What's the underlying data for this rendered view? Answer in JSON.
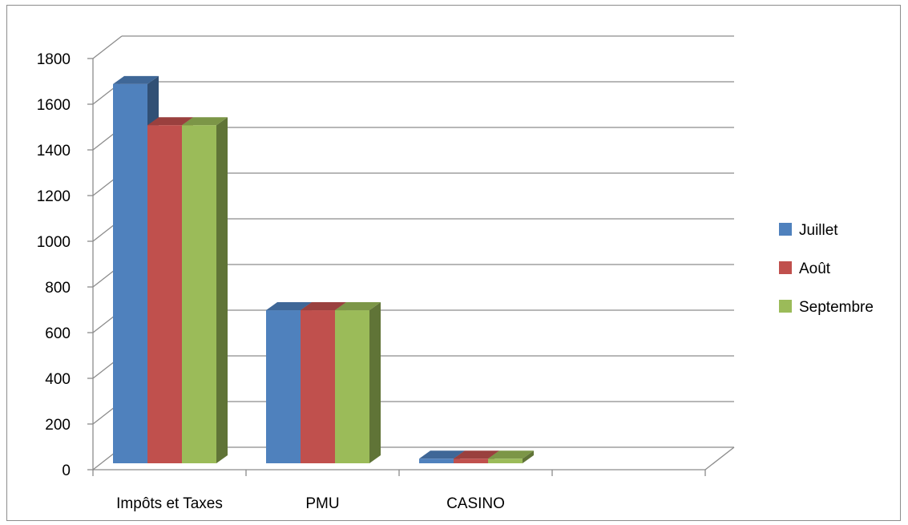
{
  "chart_data": {
    "type": "bar",
    "style": "3d-clustered-column",
    "categories": [
      "Impôts et Taxes",
      "PMU",
      "CASINO"
    ],
    "series": [
      {
        "name": "Juillet",
        "color": "#4F81BD",
        "values": [
          1660,
          670,
          20
        ]
      },
      {
        "name": "Août",
        "color": "#C0504D",
        "values": [
          1480,
          670,
          20
        ]
      },
      {
        "name": "Septembre",
        "color": "#9BBB59",
        "values": [
          1480,
          670,
          20
        ]
      }
    ],
    "y_ticks": [
      "0",
      "200",
      "400",
      "600",
      "800",
      "1000",
      "1200",
      "1400",
      "1600",
      "1800"
    ],
    "ylim": [
      0,
      1800
    ],
    "grid": true,
    "legend_position": "right"
  }
}
